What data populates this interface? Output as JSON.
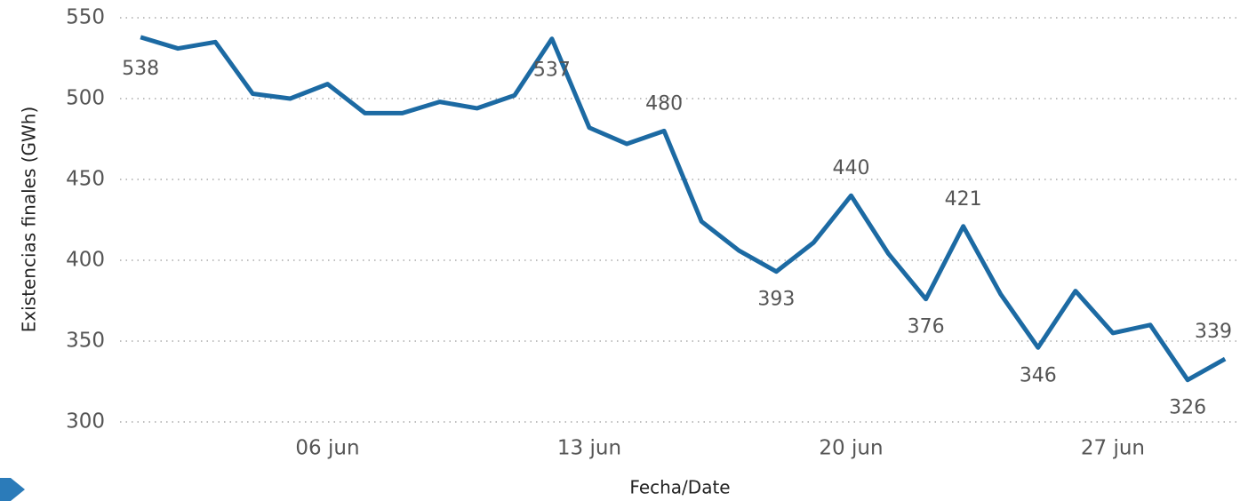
{
  "chart_data": {
    "type": "line",
    "y_label": "Existencias finales (GWh)",
    "x_label": "Fecha/Date",
    "x": [
      1,
      2,
      3,
      4,
      5,
      6,
      7,
      8,
      9,
      10,
      11,
      12,
      13,
      14,
      15,
      16,
      17,
      18,
      19,
      20,
      21,
      22,
      23,
      24,
      25,
      26,
      27,
      28,
      29,
      30
    ],
    "series": [
      {
        "name": "Existencias finales",
        "color": "#1c6aa3",
        "values": [
          538,
          531,
          535,
          503,
          500,
          509,
          491,
          491,
          498,
          494,
          502,
          537,
          482,
          472,
          480,
          424,
          406,
          393,
          411,
          440,
          404,
          376,
          421,
          379,
          346,
          381,
          355,
          360,
          326,
          339
        ],
        "value_labels": [
          "538",
          null,
          null,
          null,
          null,
          null,
          null,
          null,
          null,
          null,
          null,
          "537",
          null,
          null,
          "480",
          null,
          null,
          "393",
          null,
          "440",
          null,
          "376",
          "421",
          null,
          "346",
          null,
          null,
          null,
          "326",
          "339"
        ]
      }
    ],
    "xlim": [
      0.45,
      30.4
    ],
    "xticks": [
      {
        "value": 6,
        "label": "06 jun"
      },
      {
        "value": 13,
        "label": "13 jun"
      },
      {
        "value": 20,
        "label": "20 jun"
      },
      {
        "value": 27,
        "label": "27 jun"
      }
    ],
    "ylim": [
      300,
      550
    ],
    "yticks": [
      300,
      350,
      400,
      450,
      500,
      550
    ],
    "grid": true
  }
}
